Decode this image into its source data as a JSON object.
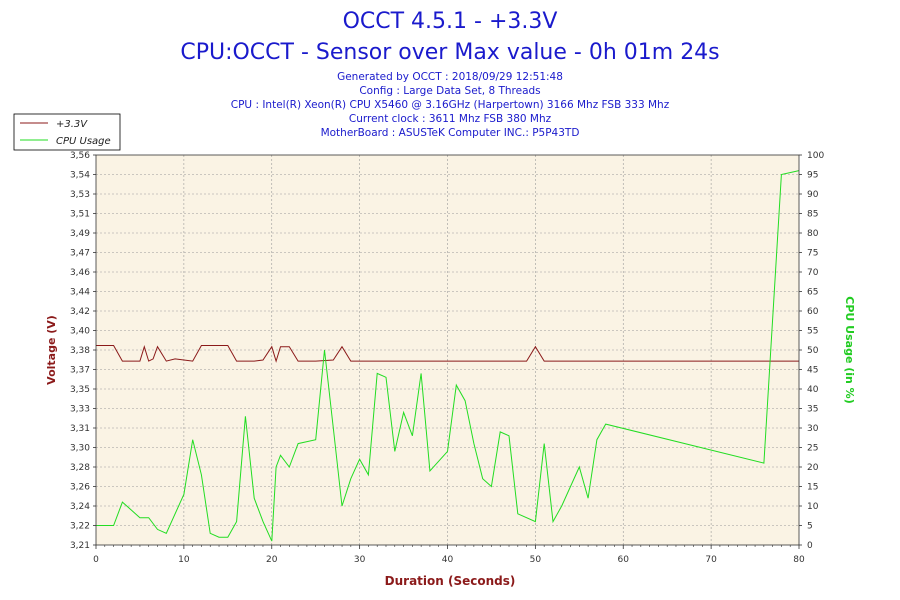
{
  "header": {
    "title": "OCCT 4.5.1 - +3.3V",
    "subtitle": "CPU:OCCT - Sensor over Max value - 0h 01m 24s",
    "info_lines": [
      "Generated by OCCT : 2018/09/29 12:51:48",
      "Config : Large Data Set, 8 Threads",
      "CPU : Intel(R) Xeon(R) CPU X5460 @ 3.16GHz (Harpertown) 3166 Mhz FSB 333 Mhz",
      "Current clock : 3611 Mhz FSB 380 Mhz",
      "MotherBoard : ASUSTeK Computer INC.: P5P43TD"
    ]
  },
  "chart_data": {
    "type": "line",
    "xlabel": "Duration (Seconds)",
    "ylabel_left": "Voltage (V)",
    "ylabel_right": "CPU Usage (in %)",
    "xlim": [
      0,
      80
    ],
    "x_ticks": [
      "0",
      "10",
      "20",
      "30",
      "40",
      "50",
      "60",
      "70",
      "80"
    ],
    "y_left_lim": [
      3.21,
      3.56
    ],
    "y_left_ticks": [
      "3,21",
      "3,22",
      "3,24",
      "3,26",
      "3,28",
      "3,30",
      "3,31",
      "3,33",
      "3,35",
      "3,37",
      "3,38",
      "3,40",
      "3,42",
      "3,44",
      "3,46",
      "3,47",
      "3,49",
      "3,51",
      "3,53",
      "3,54",
      "3,56"
    ],
    "y_right_lim": [
      0,
      100
    ],
    "y_right_ticks": [
      "0",
      "5",
      "10",
      "15",
      "20",
      "25",
      "30",
      "35",
      "40",
      "45",
      "50",
      "55",
      "60",
      "65",
      "70",
      "75",
      "80",
      "85",
      "90",
      "95",
      "100"
    ],
    "grid": true,
    "legend_position": "top-left",
    "series": [
      {
        "name": "+3.3V",
        "axis": "left",
        "color": "#8b1a1a",
        "points": [
          [
            0,
            3.389
          ],
          [
            2,
            3.389
          ],
          [
            3,
            3.375
          ],
          [
            5,
            3.375
          ],
          [
            5.5,
            3.388
          ],
          [
            6,
            3.375
          ],
          [
            6.5,
            3.377
          ],
          [
            7,
            3.388
          ],
          [
            8,
            3.375
          ],
          [
            9,
            3.377
          ],
          [
            10,
            3.376
          ],
          [
            11,
            3.375
          ],
          [
            12,
            3.389
          ],
          [
            15,
            3.389
          ],
          [
            16,
            3.375
          ],
          [
            18,
            3.375
          ],
          [
            19,
            3.376
          ],
          [
            20,
            3.388
          ],
          [
            20.5,
            3.375
          ],
          [
            21,
            3.388
          ],
          [
            22,
            3.388
          ],
          [
            23,
            3.375
          ],
          [
            25,
            3.375
          ],
          [
            27,
            3.376
          ],
          [
            28,
            3.388
          ],
          [
            29,
            3.375
          ],
          [
            49,
            3.375
          ],
          [
            50,
            3.388
          ],
          [
            51,
            3.375
          ],
          [
            80,
            3.375
          ]
        ]
      },
      {
        "name": "CPU Usage",
        "axis": "right",
        "color": "#22dd22",
        "points": [
          [
            0,
            5
          ],
          [
            2,
            5
          ],
          [
            3,
            11
          ],
          [
            5,
            7
          ],
          [
            6,
            7
          ],
          [
            7,
            4
          ],
          [
            8,
            3
          ],
          [
            10,
            13
          ],
          [
            11,
            27
          ],
          [
            12,
            18
          ],
          [
            13,
            3
          ],
          [
            14,
            2
          ],
          [
            15,
            2
          ],
          [
            16,
            6
          ],
          [
            17,
            33
          ],
          [
            18,
            12
          ],
          [
            19,
            6
          ],
          [
            20,
            1
          ],
          [
            20.5,
            20
          ],
          [
            21,
            23
          ],
          [
            22,
            20
          ],
          [
            23,
            26
          ],
          [
            25,
            27
          ],
          [
            26,
            50
          ],
          [
            27,
            30
          ],
          [
            28,
            10
          ],
          [
            29,
            17
          ],
          [
            30,
            22
          ],
          [
            31,
            18
          ],
          [
            32,
            44
          ],
          [
            33,
            43
          ],
          [
            34,
            24
          ],
          [
            35,
            34
          ],
          [
            36,
            28
          ],
          [
            37,
            44
          ],
          [
            38,
            19
          ],
          [
            40,
            24
          ],
          [
            41,
            41
          ],
          [
            42,
            37
          ],
          [
            43,
            26
          ],
          [
            44,
            17
          ],
          [
            45,
            15
          ],
          [
            46,
            29
          ],
          [
            47,
            28
          ],
          [
            48,
            8
          ],
          [
            50,
            6
          ],
          [
            51,
            26
          ],
          [
            52,
            6
          ],
          [
            53,
            10
          ],
          [
            55,
            20
          ],
          [
            56,
            12
          ],
          [
            57,
            27
          ],
          [
            58,
            31
          ],
          [
            76,
            21
          ],
          [
            78,
            95
          ],
          [
            80,
            96
          ]
        ]
      }
    ]
  },
  "legend": {
    "items": [
      {
        "label": "+3.3V",
        "color": "#8b1a1a"
      },
      {
        "label": "CPU Usage",
        "color": "#22dd22"
      }
    ]
  }
}
